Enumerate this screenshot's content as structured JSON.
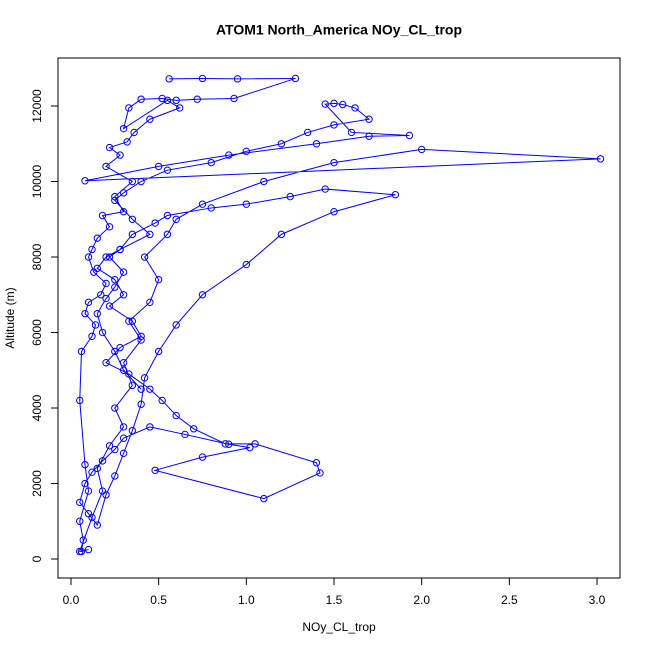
{
  "chart_data": {
    "type": "line",
    "title": "ATOM1 North_America NOy_CL_trop",
    "x_label": "NOy_CL_trop",
    "y_label": "Altitude (m)",
    "markers": true,
    "x": [
      0.56,
      0.75,
      0.95,
      1.28,
      0.93,
      0.72,
      0.6,
      0.52,
      0.4,
      0.33,
      0.3,
      0.55,
      0.62,
      0.45,
      0.36,
      0.32,
      0.22,
      0.28,
      0.2,
      0.35,
      0.25,
      0.3,
      0.18,
      0.22,
      0.15,
      0.12,
      0.1,
      0.13,
      0.2,
      0.17,
      0.1,
      0.08,
      0.14,
      0.12,
      0.06,
      0.05,
      0.08,
      0.1,
      0.05,
      0.07,
      0.06,
      0.1,
      0.05,
      0.12,
      0.18,
      0.15,
      0.22,
      0.3,
      0.25,
      0.35,
      0.3,
      0.4,
      0.33,
      0.45,
      0.5,
      0.42,
      0.55,
      0.6,
      0.75,
      1.1,
      1.5,
      2.0,
      3.02,
      0.08,
      0.5,
      0.9,
      1.4,
      1.7,
      1.93,
      1.6,
      1.45,
      1.5,
      1.55,
      1.62,
      1.7,
      1.5,
      1.35,
      1.2,
      1.0,
      0.8,
      0.55,
      0.4,
      0.3,
      0.25,
      0.35,
      0.45,
      0.28,
      0.2,
      0.15,
      0.25,
      0.3,
      0.22,
      0.35,
      0.4,
      0.28,
      0.2,
      0.33,
      0.45,
      0.52,
      0.6,
      0.7,
      0.88,
      1.05,
      1.4,
      1.42,
      1.1,
      0.48,
      0.75,
      1.02,
      0.9,
      0.65,
      0.45,
      0.3,
      0.25,
      0.18,
      0.12,
      0.08,
      0.05,
      0.1,
      0.15,
      0.2,
      0.25,
      0.3,
      0.35,
      0.4,
      0.42,
      0.5,
      0.6,
      0.75,
      1.0,
      1.2,
      1.5,
      1.85,
      1.45,
      1.25,
      1.0,
      0.8,
      0.55,
      0.48,
      0.35,
      0.28,
      0.22,
      0.3,
      0.25,
      0.2,
      0.15,
      0.18,
      0.25,
      0.3,
      0.4
    ],
    "series": [
      {
        "color": "#0000ff",
        "values": [
          12720,
          12730,
          12720,
          12730,
          12200,
          12180,
          12150,
          12200,
          12180,
          11950,
          11400,
          12150,
          11950,
          11650,
          11300,
          11050,
          10900,
          10700,
          10400,
          10000,
          9600,
          9200,
          9100,
          8800,
          8500,
          8200,
          8000,
          7600,
          7300,
          7000,
          6800,
          6500,
          6200,
          5900,
          5500,
          4200,
          2500,
          1800,
          1000,
          500,
          200,
          250,
          200,
          1100,
          1800,
          2400,
          3000,
          3500,
          4000,
          4600,
          5200,
          5800,
          6300,
          6800,
          7400,
          8000,
          8600,
          9000,
          9400,
          10000,
          10500,
          10850,
          10600,
          10020,
          10400,
          10700,
          11000,
          11200,
          11220,
          11300,
          12050,
          12070,
          12040,
          11950,
          11650,
          11500,
          11300,
          11000,
          10800,
          10500,
          10300,
          10000,
          9700,
          9500,
          9000,
          8600,
          8200,
          8000,
          7700,
          7400,
          7000,
          6700,
          6300,
          5900,
          5600,
          5200,
          4900,
          4500,
          4200,
          3800,
          3450,
          3050,
          3050,
          2550,
          2280,
          1600,
          2350,
          2700,
          2950,
          3040,
          3300,
          3500,
          3200,
          2900,
          2600,
          2300,
          2000,
          1500,
          1200,
          900,
          1700,
          2200,
          2800,
          3400,
          4100,
          4800,
          5500,
          6200,
          7000,
          7800,
          8600,
          9200,
          9650,
          9800,
          9600,
          9400,
          9300,
          9100,
          8900,
          8600,
          8200,
          8000,
          7600,
          7200,
          6900,
          6500,
          6000,
          5500,
          5000,
          4500
        ]
      }
    ],
    "xlim": [
      -0.074,
      3.131
    ],
    "ylim": [
      -503,
      13272
    ],
    "xticks": [
      {
        "value": 0,
        "label": "0.0"
      },
      0.5,
      {
        "value": 1,
        "label": "1.0"
      },
      1.5,
      {
        "value": 2,
        "label": "2.0"
      },
      2.5,
      {
        "value": 3,
        "label": "3.0"
      }
    ],
    "yticks": [
      0,
      2000,
      4000,
      6000,
      8000,
      10000,
      12000
    ]
  }
}
